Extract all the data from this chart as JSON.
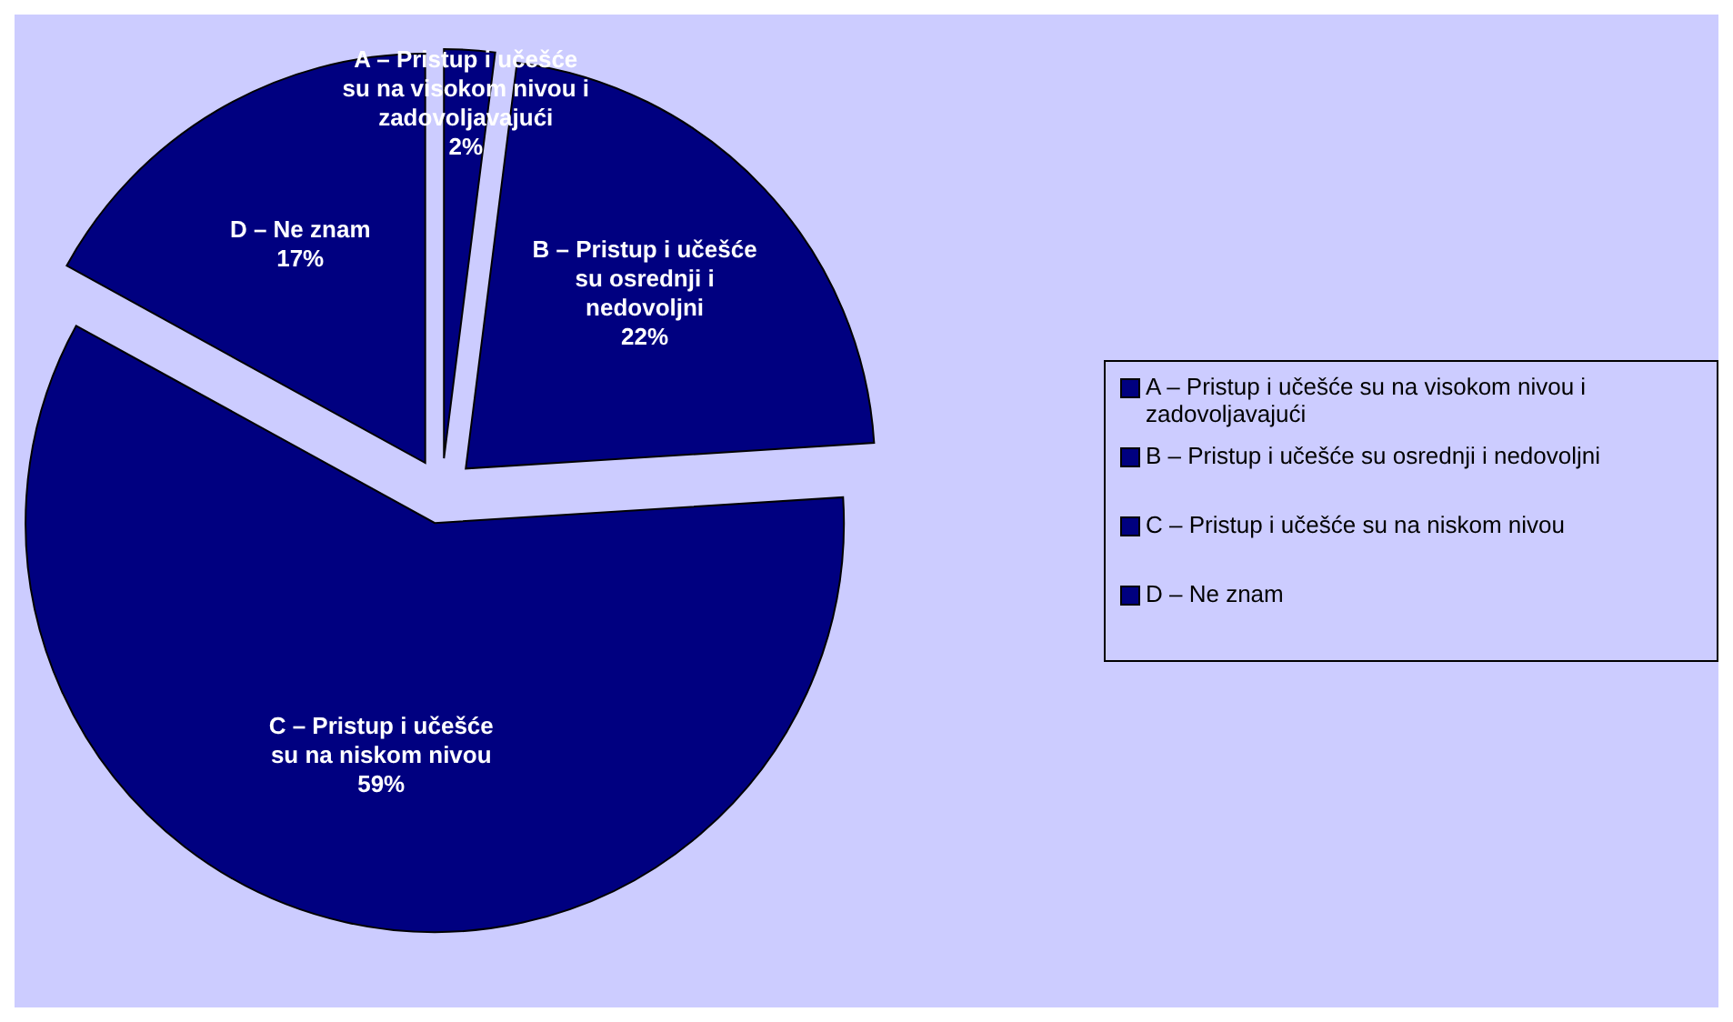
{
  "chart_data": {
    "type": "pie",
    "categories": [
      "A – Pristup i učešće su na visokom nivou i zadovoljavajući",
      "B – Pristup i učešće su osrednji i nedovoljni",
      "C – Pristup i učešće su na niskom nivou",
      "D – Ne znam"
    ],
    "values": [
      2,
      22,
      59,
      17
    ],
    "colors": [
      "#000080",
      "#000080",
      "#000080",
      "#000080"
    ],
    "value_labels": [
      "2%",
      "22%",
      "59%",
      "17%"
    ],
    "legend": "right"
  }
}
